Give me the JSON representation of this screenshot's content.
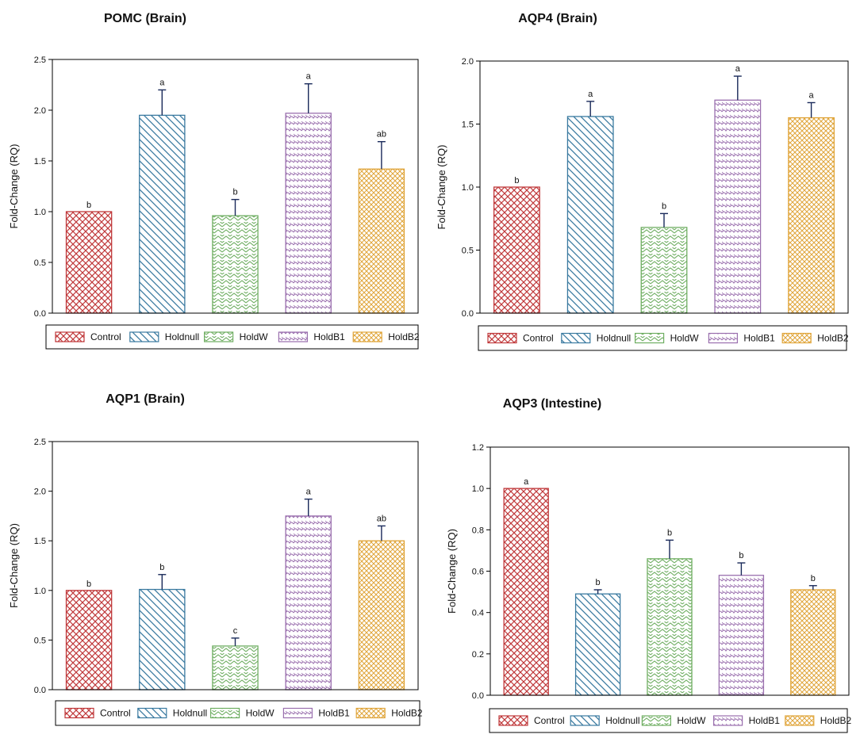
{
  "legend": [
    "Control",
    "Holdnull",
    "HoldW",
    "HoldB1",
    "HoldB2"
  ],
  "colors": [
    "#c0393b",
    "#3a7aa0",
    "#6fae62",
    "#9a6fae",
    "#e0a53a"
  ],
  "chart_data": [
    {
      "type": "bar",
      "title": "POMC (Brain)",
      "ylabel": "Fold-Change (RQ)",
      "ylim": [
        0,
        2.5
      ],
      "yticks": [
        "0.0",
        "0.5",
        "1.0",
        "1.5",
        "2.0",
        "2.5"
      ],
      "categories": [
        "Control",
        "Holdnull",
        "HoldW",
        "HoldB1",
        "HoldB2"
      ],
      "values": [
        1.0,
        1.95,
        0.96,
        1.97,
        1.42
      ],
      "errors": [
        0.0,
        0.25,
        0.16,
        0.29,
        0.27
      ],
      "labels": [
        "b",
        "a",
        "b",
        "a",
        "ab"
      ]
    },
    {
      "type": "bar",
      "title": "AQP4 (Brain)",
      "ylabel": "Fold-Change (RQ)",
      "ylim": [
        0,
        2.0
      ],
      "yticks": [
        "0.0",
        "0.5",
        "1.0",
        "1.5",
        "2.0"
      ],
      "categories": [
        "Control",
        "Holdnull",
        "HoldW",
        "HoldB1",
        "HoldB2"
      ],
      "values": [
        1.0,
        1.56,
        0.68,
        1.69,
        1.55
      ],
      "errors": [
        0.0,
        0.12,
        0.11,
        0.19,
        0.12
      ],
      "labels": [
        "b",
        "a",
        "b",
        "a",
        "a"
      ]
    },
    {
      "type": "bar",
      "title": "AQP1 (Brain)",
      "ylabel": "Fold-Change (RQ)",
      "ylim": [
        0,
        2.5
      ],
      "yticks": [
        "0.0",
        "0.5",
        "1.0",
        "1.5",
        "2.0",
        "2.5"
      ],
      "categories": [
        "Control",
        "Holdnull",
        "HoldW",
        "HoldB1",
        "HoldB2"
      ],
      "values": [
        1.0,
        1.01,
        0.44,
        1.75,
        1.5
      ],
      "errors": [
        0.0,
        0.15,
        0.08,
        0.17,
        0.15
      ],
      "labels": [
        "b",
        "b",
        "c",
        "a",
        "ab"
      ]
    },
    {
      "type": "bar",
      "title": "AQP3 (Intestine)",
      "ylabel": "Fold-Change (RQ)",
      "ylim": [
        0,
        1.2
      ],
      "yticks": [
        "0.0",
        "0.2",
        "0.4",
        "0.6",
        "0.8",
        "1.0",
        "1.2"
      ],
      "categories": [
        "Control",
        "Holdnull",
        "HoldW",
        "HoldB1",
        "HoldB2"
      ],
      "values": [
        1.0,
        0.49,
        0.66,
        0.58,
        0.51
      ],
      "errors": [
        0.0,
        0.02,
        0.09,
        0.06,
        0.02
      ],
      "labels": [
        "a",
        "b",
        "b",
        "b",
        "b"
      ]
    }
  ]
}
